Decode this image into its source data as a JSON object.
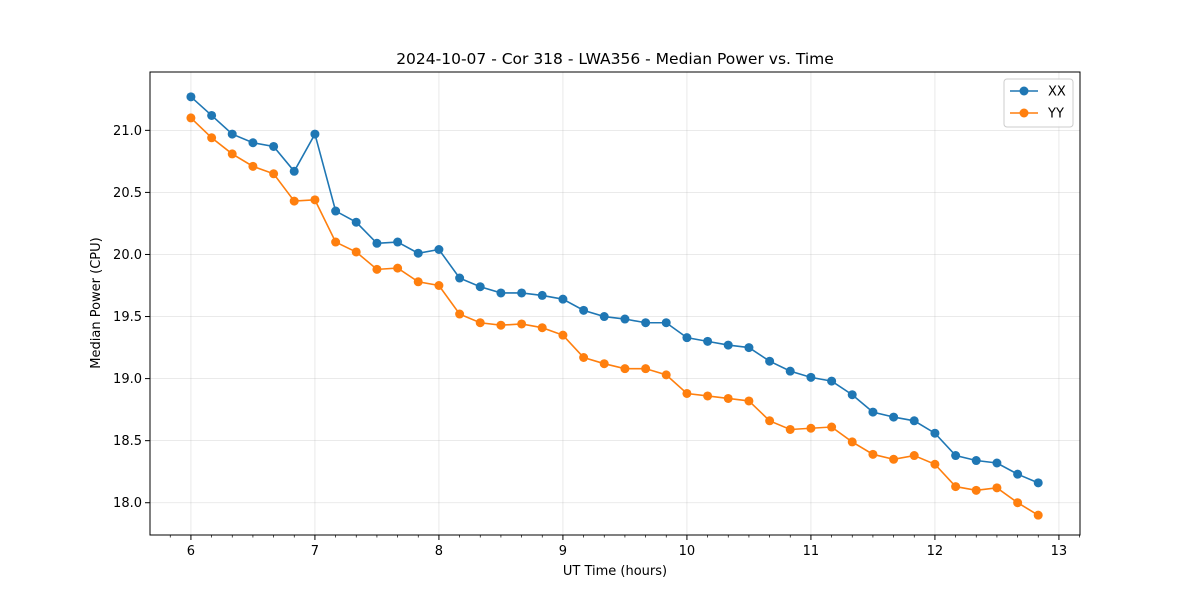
{
  "chart_data": {
    "type": "line",
    "title": "2024-10-07 - Cor 318 - LWA356 - Median Power vs. Time",
    "xlabel": "UT Time (hours)",
    "ylabel": "Median Power (CPU)",
    "xlim": [
      5.67,
      13.17
    ],
    "ylim": [
      17.74,
      21.47
    ],
    "grid": true,
    "legend_position": "top-right",
    "x_ticks": [
      6,
      7,
      8,
      9,
      10,
      11,
      12,
      13
    ],
    "x_tick_labels": [
      "6",
      "7",
      "8",
      "9",
      "10",
      "11",
      "12",
      "13"
    ],
    "y_ticks": [
      18.0,
      18.5,
      19.0,
      19.5,
      20.0,
      20.5,
      21.0
    ],
    "y_tick_labels": [
      "18.0",
      "18.5",
      "19.0",
      "19.5",
      "20.0",
      "20.5",
      "21.0"
    ],
    "x": [
      6.0,
      6.167,
      6.333,
      6.5,
      6.667,
      6.833,
      7.0,
      7.167,
      7.333,
      7.5,
      7.667,
      7.833,
      8.0,
      8.167,
      8.333,
      8.5,
      8.667,
      8.833,
      9.0,
      9.167,
      9.333,
      9.5,
      9.667,
      9.833,
      10.0,
      10.167,
      10.333,
      10.5,
      10.667,
      10.833,
      11.0,
      11.167,
      11.333,
      11.5,
      11.667,
      11.833,
      12.0,
      12.167,
      12.333,
      12.5,
      12.667,
      12.833
    ],
    "series": [
      {
        "name": "XX",
        "color": "#1f77b4",
        "values": [
          21.27,
          21.12,
          20.97,
          20.9,
          20.87,
          20.67,
          20.97,
          20.35,
          20.26,
          20.09,
          20.1,
          20.01,
          20.04,
          19.81,
          19.74,
          19.69,
          19.69,
          19.67,
          19.64,
          19.55,
          19.5,
          19.48,
          19.45,
          19.45,
          19.33,
          19.3,
          19.27,
          19.25,
          19.14,
          19.06,
          19.01,
          18.98,
          18.87,
          18.73,
          18.69,
          18.66,
          18.56,
          18.38,
          18.34,
          18.32,
          18.23,
          18.16
        ]
      },
      {
        "name": "YY",
        "color": "#ff7f0e",
        "values": [
          21.1,
          20.94,
          20.81,
          20.71,
          20.65,
          20.43,
          20.44,
          20.1,
          20.02,
          19.88,
          19.89,
          19.78,
          19.75,
          19.52,
          19.45,
          19.43,
          19.44,
          19.41,
          19.35,
          19.17,
          19.12,
          19.08,
          19.08,
          19.03,
          18.88,
          18.86,
          18.84,
          18.82,
          18.66,
          18.59,
          18.6,
          18.61,
          18.49,
          18.39,
          18.35,
          18.38,
          18.31,
          18.13,
          18.1,
          18.12,
          18.0,
          17.9
        ]
      }
    ]
  }
}
